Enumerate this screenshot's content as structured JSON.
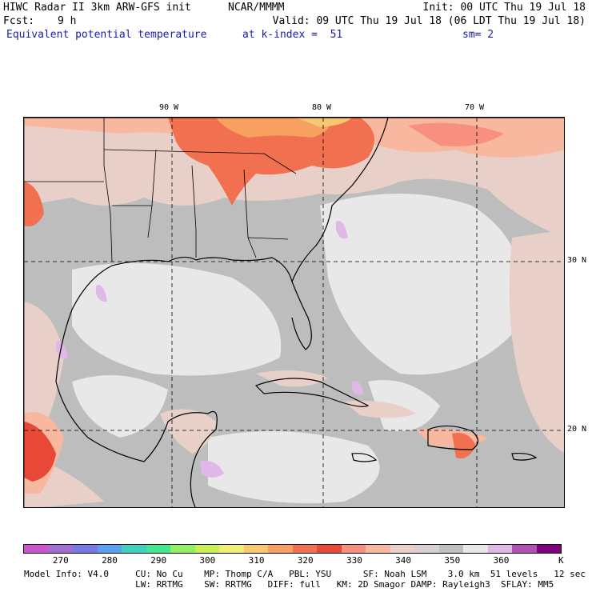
{
  "header": {
    "title": "HIWC Radar II 3km ARW-GFS init",
    "org": "NCAR/MMMM",
    "init": "Init: 00 UTC Thu 19 Jul 18",
    "fcst_label": "Fcst:",
    "fcst_value": "9 h",
    "valid": "Valid: 09 UTC Thu 19 Jul 18 (06 LDT Thu 19 Jul 18)",
    "field": "Equivalent potential temperature",
    "level": "at k-index =  51",
    "smooth": "sm= 2"
  },
  "map": {
    "lon_labels": [
      "90 W",
      "80 W",
      "70 W"
    ],
    "lat_labels": [
      "30 N",
      "20 N"
    ]
  },
  "colorbar": {
    "colors": [
      "#cc55cc",
      "#a070d0",
      "#7a78e8",
      "#5aa0f0",
      "#40d0c0",
      "#40e890",
      "#90f060",
      "#c8f050",
      "#f0f070",
      "#f8c870",
      "#f8a060",
      "#f07050",
      "#e84838",
      "#f89080",
      "#f8b8a0",
      "#e8d0c8",
      "#d8d0d0",
      "#c0c0c0",
      "#e8e8e8",
      "#e0b8e8",
      "#b050b0",
      "#800080"
    ],
    "labels": [
      "270",
      "280",
      "290",
      "300",
      "310",
      "320",
      "330",
      "340",
      "350",
      "360"
    ],
    "unit": "K"
  },
  "footer": {
    "line1": "Model Info: V4.0     CU: No Cu    MP: Thomp C/A   PBL: YSU      SF: Noah LSM    3.0 km  51 levels   12 sec",
    "line2": "                     LW: RRTMG    SW: RRTMG   DIFF: full   KM: 2D Smagor DAMP: Rayleigh3  SFLAY: MM5"
  }
}
